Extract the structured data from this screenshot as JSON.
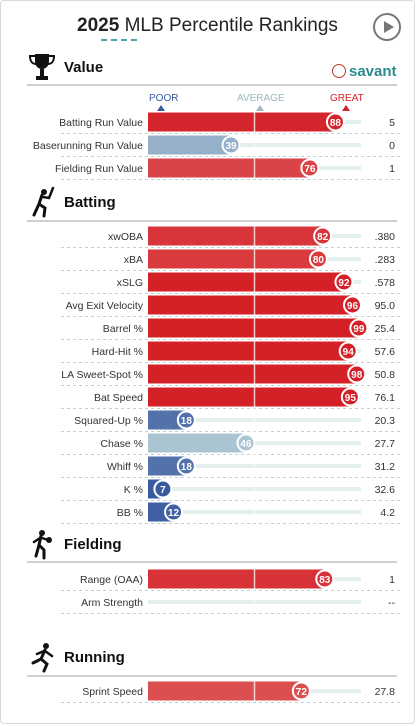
{
  "header": {
    "year": "2025",
    "title": "MLB Percentile Rankings"
  },
  "brand": {
    "logo_text": "savant"
  },
  "scale": {
    "poor_label": "POOR",
    "average_label": "AVERAGE",
    "great_label": "GREAT"
  },
  "sections": [
    {
      "title": "Value",
      "icon": "trophy-icon"
    },
    {
      "title": "Batting",
      "icon": "batter-icon"
    },
    {
      "title": "Fielding",
      "icon": "fielder-icon"
    },
    {
      "title": "Running",
      "icon": "runner-icon"
    }
  ],
  "colors": {
    "great": "#d42027",
    "poor": "#3a5aa0",
    "average": "#b7d0d7",
    "track": "#e4efef"
  },
  "chart_data": {
    "type": "bar",
    "title": "2025 MLB Percentile Rankings",
    "xlim": [
      0,
      100
    ],
    "groups": [
      {
        "name": "Value",
        "metrics": [
          {
            "label": "Batting Run Value",
            "percentile": 88,
            "value": "5"
          },
          {
            "label": "Baserunning Run Value",
            "percentile": 39,
            "value": "0"
          },
          {
            "label": "Fielding Run Value",
            "percentile": 76,
            "value": "1"
          }
        ]
      },
      {
        "name": "Batting",
        "metrics": [
          {
            "label": "xwOBA",
            "percentile": 82,
            "value": ".380"
          },
          {
            "label": "xBA",
            "percentile": 80,
            "value": ".283"
          },
          {
            "label": "xSLG",
            "percentile": 92,
            "value": ".578"
          },
          {
            "label": "Avg Exit Velocity",
            "percentile": 96,
            "value": "95.0"
          },
          {
            "label": "Barrel %",
            "percentile": 99,
            "value": "25.4"
          },
          {
            "label": "Hard-Hit %",
            "percentile": 94,
            "value": "57.6"
          },
          {
            "label": "LA Sweet-Spot %",
            "percentile": 98,
            "value": "50.8"
          },
          {
            "label": "Bat Speed",
            "percentile": 95,
            "value": "76.1"
          },
          {
            "label": "Squared-Up %",
            "percentile": 18,
            "value": "20.3"
          },
          {
            "label": "Chase %",
            "percentile": 46,
            "value": "27.7"
          },
          {
            "label": "Whiff %",
            "percentile": 18,
            "value": "31.2"
          },
          {
            "label": "K %",
            "percentile": 7,
            "value": "32.6"
          },
          {
            "label": "BB %",
            "percentile": 12,
            "value": "4.2"
          }
        ]
      },
      {
        "name": "Fielding",
        "metrics": [
          {
            "label": "Range (OAA)",
            "percentile": 83,
            "value": "1"
          },
          {
            "label": "Arm Strength",
            "percentile": null,
            "value": "--"
          }
        ]
      },
      {
        "name": "Running",
        "metrics": [
          {
            "label": "Sprint Speed",
            "percentile": 72,
            "value": "27.8"
          }
        ]
      }
    ]
  }
}
